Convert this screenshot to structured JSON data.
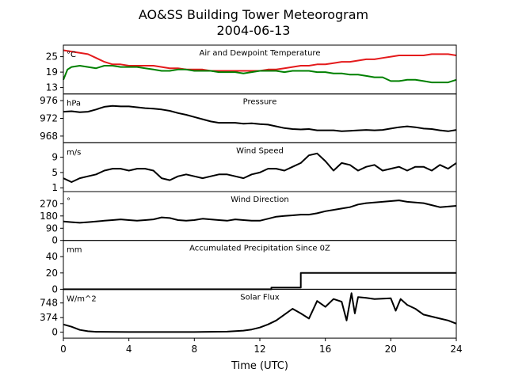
{
  "chart_data": {
    "type": "line",
    "title": "AO&SS Building Tower Meteorogram",
    "subtitle": "2004-06-13",
    "xlabel": "Time (UTC)",
    "xlim": [
      0,
      24
    ],
    "xticks": [
      "0",
      "4",
      "8",
      "12",
      "16",
      "20",
      "24"
    ],
    "panels": [
      {
        "id": "temp",
        "title": "Air and Dewpoint Temperature",
        "unit": "°C",
        "ylim": [
          10.5,
          29.5
        ],
        "yticks": [
          13,
          19,
          25
        ],
        "ytick_labels": [
          "13",
          "19",
          "25"
        ],
        "series": [
          {
            "color": "#e41a1c",
            "x": [
              0,
              0.5,
              1,
              1.5,
              2,
              2.5,
              3,
              3.5,
              4,
              4.5,
              5,
              5.5,
              6,
              6.5,
              7,
              7.5,
              8,
              8.5,
              9,
              9.5,
              10,
              10.5,
              11,
              11.5,
              12,
              12.5,
              13,
              13.5,
              14,
              14.5,
              15,
              15.5,
              16,
              16.5,
              17,
              17.5,
              18,
              18.5,
              19,
              19.5,
              20,
              20.5,
              21,
              21.5,
              22,
              22.5,
              23,
              23.5,
              24
            ],
            "y": [
              27.5,
              27,
              26.5,
              26,
              24.5,
              23,
              22,
              22,
              21.5,
              21.5,
              21.5,
              21.5,
              21,
              20.5,
              20.5,
              20,
              20,
              20,
              19.5,
              19.5,
              19.5,
              19.5,
              19.5,
              19.5,
              19.5,
              20,
              20,
              20.5,
              21,
              21.5,
              21.5,
              22,
              22,
              22.5,
              23,
              23,
              23.5,
              24,
              24,
              24.5,
              25,
              25.5,
              25.5,
              25.5,
              25.5,
              26,
              26,
              26,
              25.5
            ]
          },
          {
            "color": "#008000",
            "x": [
              0,
              0.25,
              0.5,
              1,
              1.5,
              2,
              2.5,
              3,
              3.5,
              4,
              4.5,
              5,
              5.5,
              6,
              6.5,
              7,
              7.5,
              8,
              8.5,
              9,
              9.5,
              10,
              10.5,
              11,
              11.5,
              12,
              12.5,
              13,
              13.5,
              14,
              14.5,
              15,
              15.5,
              16,
              16.5,
              17,
              17.5,
              18,
              18.5,
              19,
              19.5,
              20,
              20.5,
              21,
              21.5,
              22,
              22.5,
              23,
              23.5,
              24
            ],
            "y": [
              16,
              20,
              21,
              21.5,
              21,
              20.5,
              21.5,
              21.5,
              21,
              21,
              21,
              20.5,
              20,
              19.5,
              19.5,
              20,
              20,
              19.5,
              19.5,
              19.5,
              19,
              19,
              19,
              18.5,
              19,
              19.5,
              19.5,
              19.5,
              19,
              19.5,
              19.5,
              19.5,
              19,
              19,
              18.5,
              18.5,
              18,
              18,
              17.5,
              17,
              17,
              15.5,
              15.5,
              16,
              16,
              15.5,
              15,
              15,
              15,
              16
            ]
          }
        ]
      },
      {
        "id": "pressure",
        "title": "Pressure",
        "unit": "hPa",
        "ylim": [
          966.5,
          977.5
        ],
        "yticks": [
          968,
          972,
          976
        ],
        "ytick_labels": [
          "968",
          "972",
          "976"
        ],
        "series": [
          {
            "color": "#000000",
            "x": [
              0,
              0.5,
              1,
              1.5,
              2,
              2.5,
              3,
              3.5,
              4,
              4.5,
              5,
              5.5,
              6,
              6.5,
              7,
              7.5,
              8,
              8.5,
              9,
              9.5,
              10,
              10.5,
              11,
              11.5,
              12,
              12.5,
              13,
              13.5,
              14,
              14.5,
              15,
              15.5,
              16,
              16.5,
              17,
              17.5,
              18,
              18.5,
              19,
              19.5,
              20,
              20.5,
              21,
              21.5,
              22,
              22.5,
              23,
              23.5,
              24
            ],
            "y": [
              973.5,
              973.6,
              973.4,
              973.5,
              974,
              974.6,
              974.8,
              974.7,
              974.7,
              974.5,
              974.3,
              974.2,
              974,
              973.7,
              973.2,
              972.8,
              972.3,
              971.8,
              971.3,
              971,
              971,
              971,
              970.8,
              970.9,
              970.7,
              970.6,
              970.2,
              969.8,
              969.6,
              969.5,
              969.6,
              969.3,
              969.3,
              969.3,
              969.1,
              969.2,
              969.3,
              969.4,
              969.3,
              969.4,
              969.7,
              970,
              970.2,
              970,
              969.7,
              969.6,
              969.3,
              969.1,
              969.4
            ]
          }
        ]
      },
      {
        "id": "wind_speed",
        "title": "Wind Speed",
        "unit": "m/s",
        "ylim": [
          0,
          12.8
        ],
        "yticks": [
          1,
          5,
          9
        ],
        "ytick_labels": [
          "1",
          "5",
          "9"
        ],
        "series": [
          {
            "color": "#000000",
            "x": [
              0,
              0.5,
              1,
              1.5,
              2,
              2.5,
              3,
              3.5,
              4,
              4.5,
              5,
              5.5,
              6,
              6.5,
              7,
              7.5,
              8,
              8.5,
              9,
              9.5,
              10,
              10.5,
              11,
              11.5,
              12,
              12.5,
              13,
              13.5,
              14,
              14.5,
              15,
              15.5,
              16,
              16.5,
              17,
              17.5,
              18,
              18.5,
              19,
              19.5,
              20,
              20.5,
              21,
              21.5,
              22,
              22.5,
              23,
              23.5,
              24
            ],
            "y": [
              3.5,
              2.5,
              3.5,
              4,
              4.5,
              5.5,
              6,
              6,
              5.5,
              6,
              6,
              5.5,
              3.5,
              3,
              4,
              4.5,
              4,
              3.5,
              4,
              4.5,
              4.5,
              4,
              3.5,
              4.5,
              5,
              6,
              6,
              5.5,
              6.5,
              7.5,
              9.5,
              10,
              8,
              5.5,
              7.5,
              7,
              5.5,
              6.5,
              7,
              5.5,
              6,
              6.5,
              5.5,
              6.5,
              6.5,
              5.5,
              7,
              6,
              7.5
            ]
          }
        ]
      },
      {
        "id": "wind_dir",
        "title": "Wind Direction",
        "unit": "°",
        "ylim": [
          0,
          360
        ],
        "yticks": [
          0,
          90,
          180,
          270
        ],
        "ytick_labels": [
          "0",
          "90",
          "180",
          "270"
        ],
        "series": [
          {
            "color": "#000000",
            "x": [
              0,
              0.5,
              1,
              1.5,
              2,
              2.5,
              3,
              3.5,
              4,
              4.5,
              5,
              5.5,
              6,
              6.5,
              7,
              7.5,
              8,
              8.5,
              9,
              9.5,
              10,
              10.5,
              11,
              11.5,
              12,
              12.5,
              13,
              13.5,
              14,
              14.5,
              15,
              15.5,
              16,
              16.5,
              17,
              17.5,
              18,
              18.5,
              19,
              19.5,
              20,
              20.5,
              21,
              21.5,
              22,
              22.5,
              23,
              23.5,
              24
            ],
            "y": [
              140,
              135,
              130,
              135,
              140,
              145,
              150,
              155,
              150,
              145,
              150,
              155,
              170,
              165,
              150,
              145,
              150,
              160,
              155,
              150,
              145,
              155,
              150,
              145,
              145,
              160,
              175,
              180,
              185,
              190,
              190,
              200,
              215,
              225,
              235,
              245,
              265,
              275,
              280,
              285,
              290,
              295,
              285,
              280,
              275,
              260,
              245,
              250,
              255
            ]
          }
        ]
      },
      {
        "id": "precip",
        "title": "Accumulated Precipitation Since 0Z",
        "unit": "mm",
        "ylim": [
          0,
          60
        ],
        "yticks": [
          0,
          20,
          40
        ],
        "ytick_labels": [
          "0",
          "20",
          "40"
        ],
        "series": [
          {
            "color": "#000000",
            "x": [
              0,
              12.7,
              12.7,
              14.5,
              14.5,
              24
            ],
            "y": [
              0,
              0,
              2,
              2,
              20,
              20
            ]
          }
        ]
      },
      {
        "id": "solar",
        "title": "Solar Flux",
        "unit": "W/m^2",
        "ylim": [
          -150,
          1100
        ],
        "yticks": [
          0,
          374,
          748
        ],
        "ytick_labels": [
          "0",
          "374",
          "748"
        ],
        "series": [
          {
            "color": "#000000",
            "x": [
              0,
              0.5,
              1,
              1.5,
              2,
              4,
              6,
              8,
              10,
              11,
              11.5,
              12,
              12.5,
              13,
              13.5,
              14,
              14.5,
              15,
              15.5,
              16,
              16.5,
              17,
              17.3,
              17.6,
              17.8,
              18,
              18.5,
              19,
              19.5,
              20,
              20.3,
              20.6,
              21,
              21.5,
              22,
              22.5,
              23,
              23.5,
              24
            ],
            "y": [
              200,
              140,
              60,
              25,
              10,
              5,
              5,
              5,
              15,
              40,
              70,
              120,
              200,
              300,
              450,
              600,
              480,
              350,
              800,
              650,
              850,
              780,
              300,
              1000,
              480,
              900,
              880,
              850,
              860,
              870,
              550,
              850,
              700,
              600,
              450,
              400,
              350,
              300,
              220
            ]
          }
        ]
      }
    ]
  }
}
